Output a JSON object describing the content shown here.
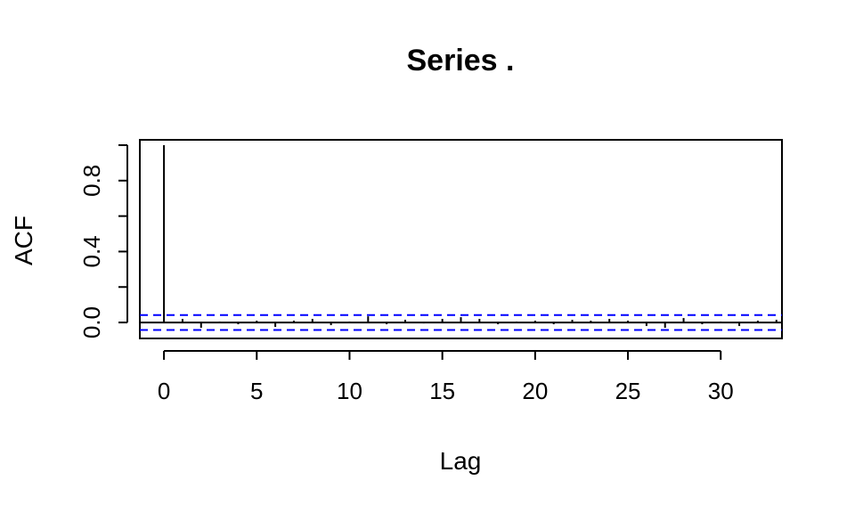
{
  "chart_data": {
    "type": "bar",
    "title": "Series  .",
    "xlabel": "Lag",
    "ylabel": "ACF",
    "xlim": [
      -1.3,
      33.3
    ],
    "ylim": [
      -0.09,
      1.03
    ],
    "x_ticks": [
      0,
      5,
      10,
      15,
      20,
      25,
      30
    ],
    "x_tick_labels": [
      "0",
      "5",
      "10",
      "15",
      "20",
      "25",
      "30"
    ],
    "y_ticks": [
      0.0,
      0.2,
      0.4,
      0.6,
      0.8,
      1.0
    ],
    "y_tick_labels": [
      "0.0",
      "",
      "0.4",
      "",
      "0.8",
      ""
    ],
    "lags": [
      0,
      1,
      2,
      3,
      4,
      5,
      6,
      7,
      8,
      9,
      10,
      11,
      12,
      13,
      14,
      15,
      16,
      17,
      18,
      19,
      20,
      21,
      22,
      23,
      24,
      25,
      26,
      27,
      28,
      29,
      30,
      31,
      32,
      33
    ],
    "acf": [
      1.0,
      0.02,
      -0.03,
      0.005,
      -0.01,
      0.01,
      -0.025,
      0.01,
      0.02,
      -0.015,
      0.005,
      0.035,
      -0.01,
      0.015,
      -0.005,
      0.02,
      0.03,
      0.02,
      -0.01,
      0.005,
      0.01,
      -0.01,
      0.015,
      0.01,
      0.02,
      0.01,
      -0.02,
      -0.03,
      0.025,
      -0.01,
      0.005,
      -0.02,
      0.01,
      0.015
    ],
    "confidence_bound": 0.042,
    "grid": false,
    "colors": {
      "acf": "#000000",
      "confidence": "#0000ff",
      "zero_line": "#000000"
    }
  }
}
